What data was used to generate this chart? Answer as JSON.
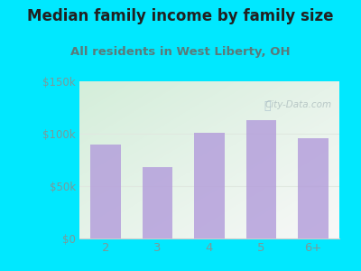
{
  "title": "Median family income by family size",
  "subtitle": "All residents in West Liberty, OH",
  "categories": [
    "2",
    "3",
    "4",
    "5",
    "6+"
  ],
  "values": [
    90000,
    68000,
    101000,
    113000,
    96000
  ],
  "bar_color": "#b39ddb",
  "bar_alpha": 0.82,
  "ylim": [
    0,
    150000
  ],
  "ytick_vals": [
    0,
    50000,
    100000,
    150000
  ],
  "ytick_labels": [
    "$0",
    "$50k",
    "$100k",
    "$150k"
  ],
  "background_outer": "#00e8ff",
  "grad_color_topleft": "#d4eeda",
  "grad_color_bottomright": "#f8f8f8",
  "title_color": "#212121",
  "subtitle_color": "#5a7a7a",
  "tick_color": "#7a9a9a",
  "watermark": "City-Data.com",
  "title_fontsize": 12,
  "subtitle_fontsize": 9.5,
  "grid_color": "#e0e8e0",
  "spine_color": "#cccccc"
}
